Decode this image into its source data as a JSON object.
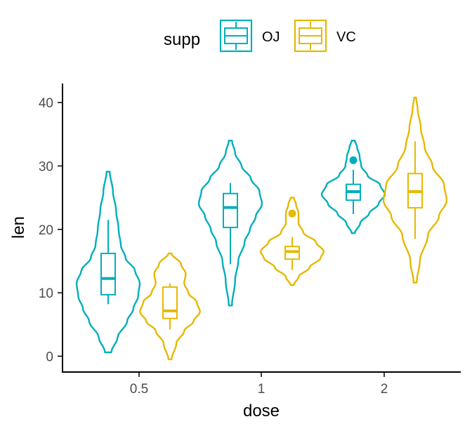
{
  "chart_data": {
    "type": "violin",
    "xlabel": "dose",
    "ylabel": "len",
    "categories": [
      "0.5",
      "1",
      "2"
    ],
    "ylim": [
      -2.5,
      43
    ],
    "yticks": [
      0,
      10,
      20,
      30,
      40
    ],
    "grid": false,
    "legend": {
      "title": "supp",
      "position": "top"
    },
    "series": [
      {
        "name": "OJ",
        "color": "#00AFBB",
        "groups": [
          {
            "dose": "0.5",
            "violin_range": [
              0.6,
              29.1
            ],
            "density": [
              [
                0.6,
                0.1
              ],
              [
                3,
                0.3
              ],
              [
                5.5,
                0.6
              ],
              [
                7.5,
                0.8
              ],
              [
                9.5,
                0.95
              ],
              [
                11.5,
                1.0
              ],
              [
                13.5,
                0.85
              ],
              [
                15.5,
                0.55
              ],
              [
                17.5,
                0.4
              ],
              [
                20,
                0.33
              ],
              [
                23,
                0.25
              ],
              [
                26,
                0.15
              ],
              [
                29.1,
                0.05
              ]
            ],
            "box": {
              "q1": 9.7,
              "median": 12.25,
              "q3": 16.2,
              "whisker_low": 8.2,
              "whisker_high": 21.5
            },
            "outliers": []
          },
          {
            "dose": "1",
            "violin_range": [
              8.0,
              34.0
            ],
            "density": [
              [
                8,
                0.05
              ],
              [
                12,
                0.15
              ],
              [
                15,
                0.25
              ],
              [
                18,
                0.45
              ],
              [
                20,
                0.62
              ],
              [
                22,
                0.8
              ],
              [
                24,
                1.0
              ],
              [
                26,
                0.92
              ],
              [
                28,
                0.65
              ],
              [
                30,
                0.35
              ],
              [
                32,
                0.15
              ],
              [
                34,
                0.05
              ]
            ],
            "box": {
              "q1": 20.3,
              "median": 23.45,
              "q3": 25.65,
              "whisker_low": 14.5,
              "whisker_high": 27.3
            },
            "outliers": []
          },
          {
            "dose": "2",
            "violin_range": [
              19.4,
              34.0
            ],
            "density": [
              [
                19.4,
                0.05
              ],
              [
                21,
                0.22
              ],
              [
                22.5,
                0.5
              ],
              [
                24,
                0.8
              ],
              [
                25.5,
                1.0
              ],
              [
                27,
                0.85
              ],
              [
                28.5,
                0.45
              ],
              [
                30,
                0.25
              ],
              [
                31.5,
                0.2
              ],
              [
                33,
                0.12
              ],
              [
                34,
                0.05
              ]
            ],
            "box": {
              "q1": 24.6,
              "median": 25.95,
              "q3": 27.1,
              "whisker_low": 22.4,
              "whisker_high": 29.4
            },
            "outliers": [
              30.9
            ]
          }
        ]
      },
      {
        "name": "VC",
        "color": "#E7B800",
        "groups": [
          {
            "dose": "0.5",
            "violin_range": [
              -0.5,
              16.2
            ],
            "density": [
              [
                -0.5,
                0.05
              ],
              [
                2,
                0.2
              ],
              [
                4,
                0.45
              ],
              [
                5.5,
                0.75
              ],
              [
                7,
                0.95
              ],
              [
                8.5,
                0.85
              ],
              [
                10,
                0.58
              ],
              [
                11.5,
                0.45
              ],
              [
                13,
                0.5
              ],
              [
                14.5,
                0.35
              ],
              [
                16.2,
                0.05
              ]
            ],
            "box": {
              "q1": 5.95,
              "median": 7.15,
              "q3": 10.9,
              "whisker_low": 4.2,
              "whisker_high": 11.5
            },
            "outliers": []
          },
          {
            "dose": "1",
            "violin_range": [
              11.2,
              25.0
            ],
            "density": [
              [
                11.2,
                0.05
              ],
              [
                12.5,
                0.2
              ],
              [
                14,
                0.55
              ],
              [
                15.5,
                0.9
              ],
              [
                16.5,
                1.0
              ],
              [
                18,
                0.75
              ],
              [
                19.5,
                0.35
              ],
              [
                21,
                0.2
              ],
              [
                22.5,
                0.2
              ],
              [
                24,
                0.12
              ],
              [
                25,
                0.05
              ]
            ],
            "box": {
              "q1": 15.3,
              "median": 16.5,
              "q3": 17.3,
              "whisker_low": 13.6,
              "whisker_high": 18.8
            },
            "outliers": [
              22.5
            ]
          },
          {
            "dose": "2",
            "violin_range": [
              11.6,
              40.8
            ],
            "density": [
              [
                11.6,
                0.05
              ],
              [
                15,
                0.15
              ],
              [
                19,
                0.4
              ],
              [
                22,
                0.75
              ],
              [
                24.5,
                1.0
              ],
              [
                27,
                0.92
              ],
              [
                30,
                0.55
              ],
              [
                33,
                0.3
              ],
              [
                36,
                0.18
              ],
              [
                39,
                0.08
              ],
              [
                40.8,
                0.03
              ]
            ],
            "box": {
              "q1": 23.4,
              "median": 25.95,
              "q3": 28.8,
              "whisker_low": 18.5,
              "whisker_high": 33.9
            },
            "outliers": []
          }
        ]
      }
    ]
  }
}
